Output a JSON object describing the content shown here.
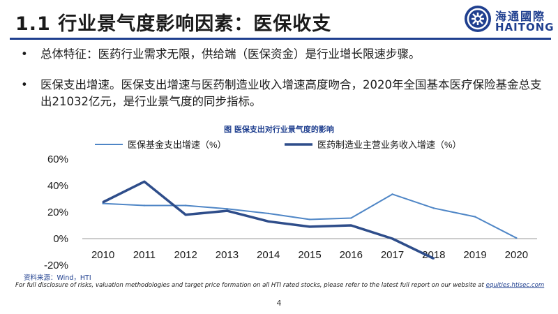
{
  "slide": {
    "title": "1.1 行业景气度影响因素：医保收支",
    "page_number": "4"
  },
  "logo": {
    "name_cn": "海通國際",
    "name_en": "HAITONG"
  },
  "bullets": [
    {
      "mark": "•",
      "text": "总体特征：医药行业需求无限，供给端（医保资金）是行业增长限速步骤。"
    },
    {
      "mark": "•",
      "text": "医保支出增速。医保支出增速与医药制造业收入增速高度吻合，2020年全国基本医疗保险基金总支出21032亿元，是行业景气度的同步指标。"
    }
  ],
  "chart_caption": "图  医保支出对行业景气度的影响",
  "chart_data": {
    "type": "line",
    "categories": [
      "2010",
      "2011",
      "2012",
      "2013",
      "2014",
      "2015",
      "2016",
      "2017",
      "2018",
      "2019",
      "2020"
    ],
    "series": [
      {
        "name": "医保基金支出增速（%）",
        "color": "#4f86c6",
        "values": [
          26.5,
          25,
          25,
          22.5,
          19,
          14.5,
          15.5,
          33.5,
          23,
          16.5,
          0.5
        ]
      },
      {
        "name": "医药制造业主营业务收入增速（%）",
        "color": "#2e4d8a",
        "values": [
          27.5,
          43,
          18,
          21,
          13,
          9,
          10,
          0,
          -15,
          null,
          null
        ]
      }
    ],
    "ylim": [
      -20,
      60
    ],
    "yticks": [
      "60%",
      "40%",
      "20%",
      "0%",
      "-20%"
    ],
    "ytick_values": [
      60,
      40,
      20,
      0,
      -20
    ],
    "legend_position": "top",
    "grid": false
  },
  "source": "资料来源：Wind，HTI",
  "disclaimer": {
    "text": "For full disclosure of risks, valuation methodologies and target price formation on all HTI rated stocks, please refer to the latest full report on our website at ",
    "link": "equities.htisec.com"
  }
}
